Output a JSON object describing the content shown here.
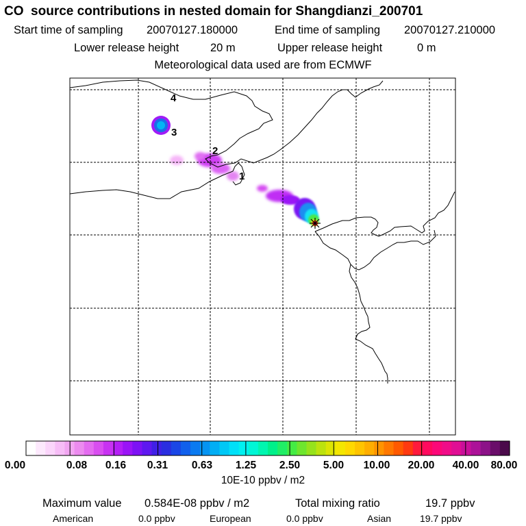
{
  "header": {
    "title": "CO  source contributions in nested domain for Shangdianzi_200701",
    "start_label": "Start time of sampling",
    "start_value": "20070127.180000",
    "end_label": "End time of sampling",
    "end_value": "20070127.210000",
    "lower_label": "Lower release height",
    "lower_value": "20 m",
    "upper_label": "Upper release height",
    "upper_value": "0 m",
    "met_text": "Meteorological data used are from ECMWF"
  },
  "map": {
    "region_labels": [
      "1",
      "2",
      "3",
      "4"
    ],
    "receptor_marker": "receptor-star-icon",
    "gridlines": "dashed"
  },
  "colorbar": {
    "tick_labels": [
      "0.00",
      "0.08",
      "0.16",
      "0.31",
      "0.63",
      "1.25",
      "2.50",
      "5.00",
      "10.00",
      "20.00",
      "40.00",
      "80.00"
    ],
    "unit": "10E-10 ppbv / m2",
    "colors": [
      "#ffffff",
      "#fde9fd",
      "#fbd5fb",
      "#f7bdf7",
      "#f2a6f2",
      "#ec8bef",
      "#e46cf0",
      "#d94ef0",
      "#c832f2",
      "#b41ff5",
      "#9a14f6",
      "#7d12f4",
      "#5f18f0",
      "#4020e6",
      "#2a2ee0",
      "#1a46e6",
      "#1160ec",
      "#0a7af0",
      "#0594f2",
      "#02aef4",
      "#00c8f6",
      "#00e0f8",
      "#00f0f0",
      "#00f6d6",
      "#00f6b0",
      "#00f08a",
      "#20ee66",
      "#44ec44",
      "#6ee62e",
      "#96e21c",
      "#bce20e",
      "#dce404",
      "#f4e600",
      "#ffd800",
      "#ffc400",
      "#ffae00",
      "#ff9400",
      "#ff7800",
      "#ff5a00",
      "#ff3a10",
      "#ff1a3c",
      "#ff0a5e",
      "#fc0878",
      "#f00c88",
      "#e00e94",
      "#c8109a",
      "#ac1298",
      "#8c1288",
      "#6a0e6a",
      "#4a0a4a"
    ]
  },
  "summary": {
    "max_label": "Maximum value",
    "max_value": "0.584E-08 ppbv / m2",
    "total_label": "Total mixing ratio",
    "total_value": "19.7 ppbv",
    "american_label": "American",
    "american_value": "0.0 ppbv",
    "european_label": "European",
    "european_value": "0.0 ppbv",
    "asian_label": "Asian",
    "asian_value": "19.7 ppbv"
  }
}
